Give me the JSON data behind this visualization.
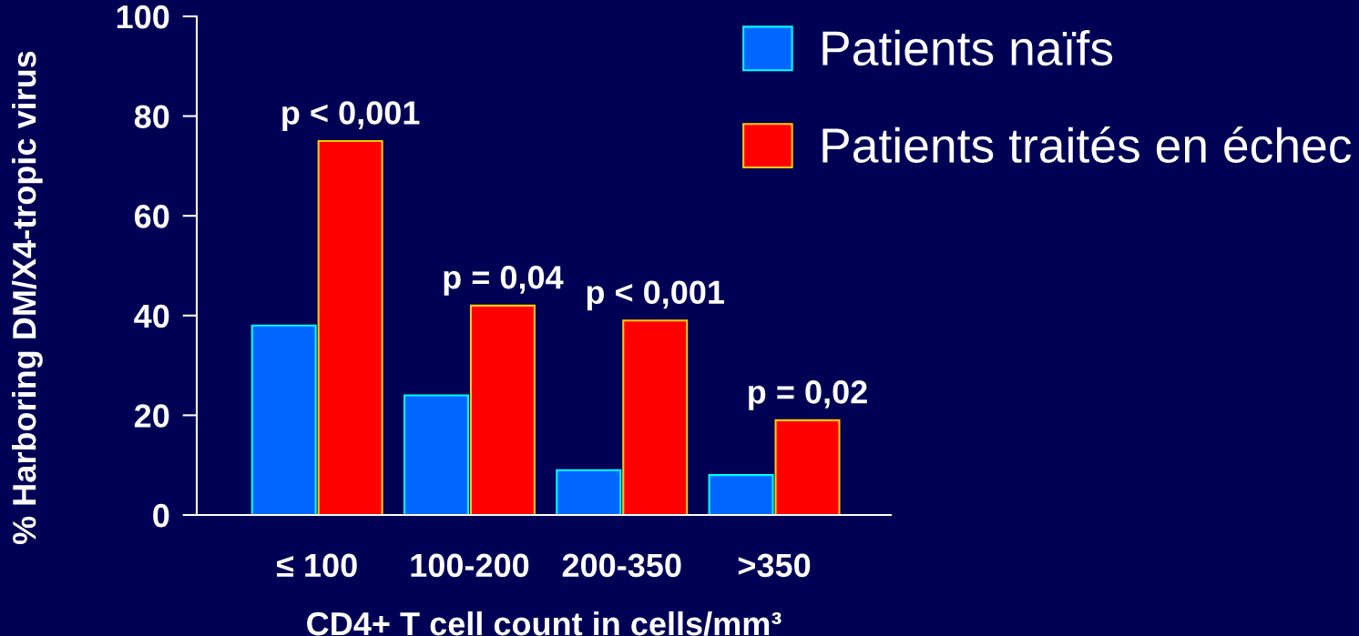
{
  "chart_data": {
    "type": "bar",
    "xlabel": "CD4+ T cell count in cells/mm³",
    "ylabel": "% Harboring DM/X4-tropic virus",
    "categories": [
      "≤ 100",
      "100-200",
      "200-350",
      ">350"
    ],
    "series": [
      {
        "name": "Patients naïfs",
        "color": "#0066ff",
        "values": [
          38,
          24,
          9,
          8
        ]
      },
      {
        "name": "Patients traités en échec",
        "color": "#ff0000",
        "values": [
          75,
          42,
          39,
          19
        ]
      }
    ],
    "ylim": [
      0,
      100
    ],
    "yticks": [
      0,
      20,
      40,
      60,
      80,
      100
    ],
    "legend": "top right",
    "annotations": [
      "p < 0,001",
      "p = 0,04",
      "p < 0,001",
      "p = 0,02"
    ]
  }
}
